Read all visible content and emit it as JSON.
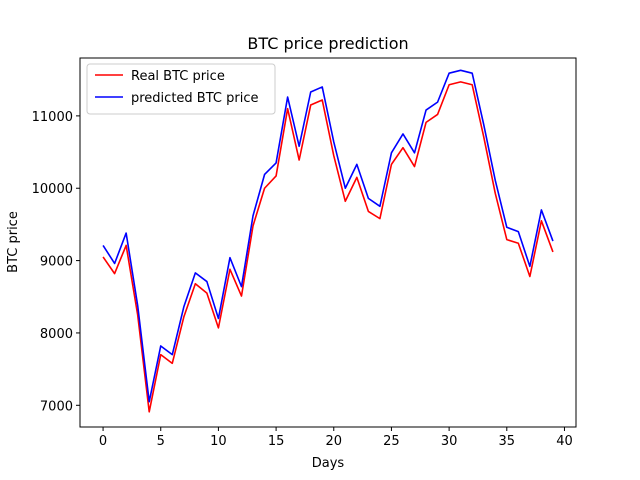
{
  "chart_data": {
    "type": "line",
    "title": "BTC price prediction",
    "xlabel": "Days",
    "ylabel": "BTC price",
    "xlim": [
      -2,
      41
    ],
    "ylim": [
      6700,
      11800
    ],
    "xticks": [
      0,
      5,
      10,
      15,
      20,
      25,
      30,
      35,
      40
    ],
    "xtick_labels": [
      "0",
      "5",
      "10",
      "15",
      "20",
      "25",
      "30",
      "35",
      "40"
    ],
    "yticks": [
      7000,
      8000,
      9000,
      10000,
      11000
    ],
    "ytick_labels": [
      "7000",
      "8000",
      "9000",
      "10000",
      "11000"
    ],
    "grid": false,
    "legend_position": "upper-left",
    "x": [
      0,
      1,
      2,
      3,
      4,
      5,
      6,
      7,
      8,
      9,
      10,
      11,
      12,
      13,
      14,
      15,
      16,
      17,
      18,
      19,
      20,
      21,
      22,
      23,
      24,
      25,
      26,
      27,
      28,
      29,
      30,
      31,
      32,
      33,
      34,
      35,
      36,
      37,
      38,
      39
    ],
    "series": [
      {
        "name": "Real BTC price",
        "color": "#ff0000",
        "values": [
          9050,
          8820,
          9210,
          8250,
          6910,
          7700,
          7580,
          8220,
          8680,
          8550,
          8070,
          8880,
          8510,
          9480,
          10000,
          10170,
          11100,
          10390,
          11150,
          11220,
          10450,
          9820,
          10150,
          9680,
          9580,
          10330,
          10560,
          10300,
          10910,
          11020,
          11430,
          11470,
          11430,
          10710,
          9930,
          9290,
          9240,
          8780,
          9550,
          9120
        ]
      },
      {
        "name": "predicted BTC price",
        "color": "#0000ff",
        "values": [
          9210,
          8960,
          9380,
          8380,
          7050,
          7820,
          7700,
          8360,
          8830,
          8710,
          8200,
          9040,
          8640,
          9620,
          10190,
          10350,
          11260,
          10580,
          11330,
          11400,
          10640,
          10000,
          10330,
          9860,
          9750,
          10490,
          10750,
          10490,
          11080,
          11190,
          11590,
          11630,
          11590,
          10880,
          10110,
          9460,
          9400,
          8920,
          9700,
          9270
        ]
      }
    ]
  }
}
